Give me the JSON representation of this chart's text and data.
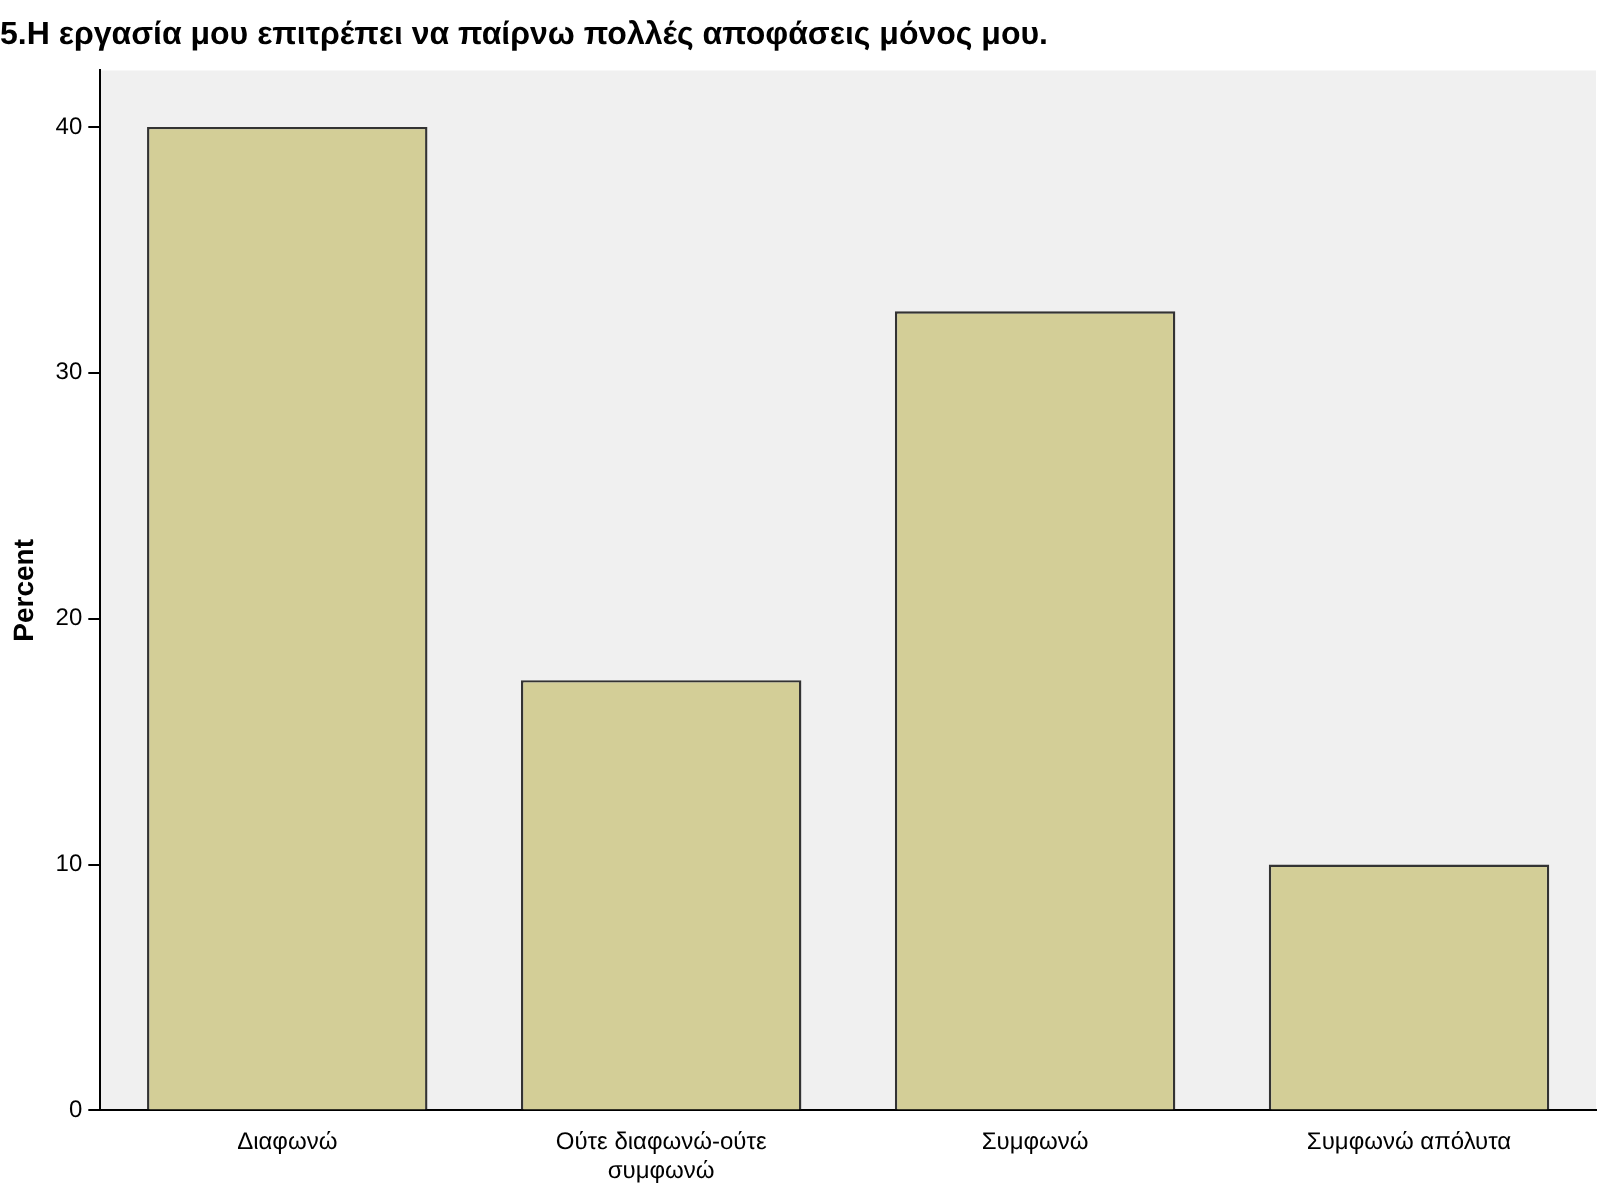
{
  "chart_data": {
    "type": "bar",
    "title": "5.Η εργασία μου επιτρέπει να παίρνω πολλές αποφάσεις μόνος μου.",
    "ylabel": "Percent",
    "categories": [
      "Διαφωνώ",
      "Ούτε διαφωνώ-ούτε συμφωνώ",
      "Συμφωνώ",
      "Συμφωνώ απόλυτα"
    ],
    "values": [
      40,
      17.5,
      32.5,
      10
    ],
    "color": "#d3ce97",
    "ylim": [
      0,
      42.3
    ],
    "yticks": [
      0,
      10,
      20,
      30,
      40
    ],
    "grid": false,
    "legend": false
  }
}
